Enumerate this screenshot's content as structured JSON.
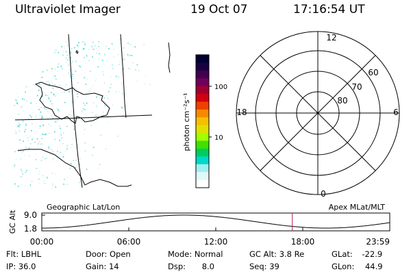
{
  "header": {
    "title": "Ultraviolet Imager",
    "date": "19 Oct 07",
    "time": "17:16:54 UT"
  },
  "colorbar": {
    "unit_label": "photon cm⁻²s⁻¹",
    "ticks": [
      {
        "value": 100,
        "label": "100"
      },
      {
        "value": 10,
        "label": "10"
      }
    ],
    "colors": [
      "#000033",
      "#1a0040",
      "#400050",
      "#70005a",
      "#a00030",
      "#d00010",
      "#f04000",
      "#f58a00",
      "#f5c000",
      "#e0e000",
      "#a0ff00",
      "#40e000",
      "#00cc60",
      "#00d8c8",
      "#a0f0f0",
      "#e0f8f8",
      "#ffffff"
    ]
  },
  "polar_plot": {
    "labels_mlt": {
      "top": "12",
      "bottom": "0",
      "left": "18",
      "right": "6"
    },
    "labels_mlat": [
      "60",
      "70",
      "80"
    ]
  },
  "altitude_panel": {
    "axis_label": "GC Alt",
    "y_ticks": [
      "9.0",
      "1.8"
    ],
    "left_caption": "Geographic Lat/Lon",
    "right_caption": "Apex MLat/MLT",
    "x_ticks": [
      "00:00",
      "06:00",
      "12:00",
      "18:00",
      "23:59"
    ],
    "current_time_marker_hours": 17.28,
    "marker_color": "#b02040"
  },
  "info": {
    "filter": {
      "label": "Flt:",
      "value": "LBHL"
    },
    "ip": {
      "label": "IP:",
      "value": "36.0"
    },
    "door": {
      "label": "Door:",
      "value": "Open"
    },
    "gain": {
      "label": "Gain:",
      "value": "14"
    },
    "mode": {
      "label": "Mode:",
      "value": "Normal"
    },
    "dsp": {
      "label": "Dsp:",
      "value": "8.0"
    },
    "gc_alt": {
      "label": "GC Alt:",
      "value": "3.8 Re"
    },
    "seq": {
      "label": "Seq:",
      "value": "39"
    },
    "glat": {
      "label": "GLat:",
      "value": "-22.9"
    },
    "glon": {
      "label": "GLon:",
      "value": "44.9"
    }
  }
}
